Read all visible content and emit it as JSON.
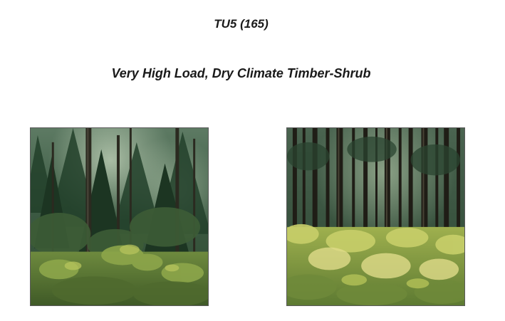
{
  "document": {
    "code": "TU5 (165)",
    "title": "Very High Load, Dry Climate Timber-Shrub"
  },
  "photos": [
    {
      "subject": "dense-conifer-forest-with-shrub-understory"
    },
    {
      "subject": "tall-pole-conifer-stand-with-yellow-green-shrubs"
    }
  ]
}
